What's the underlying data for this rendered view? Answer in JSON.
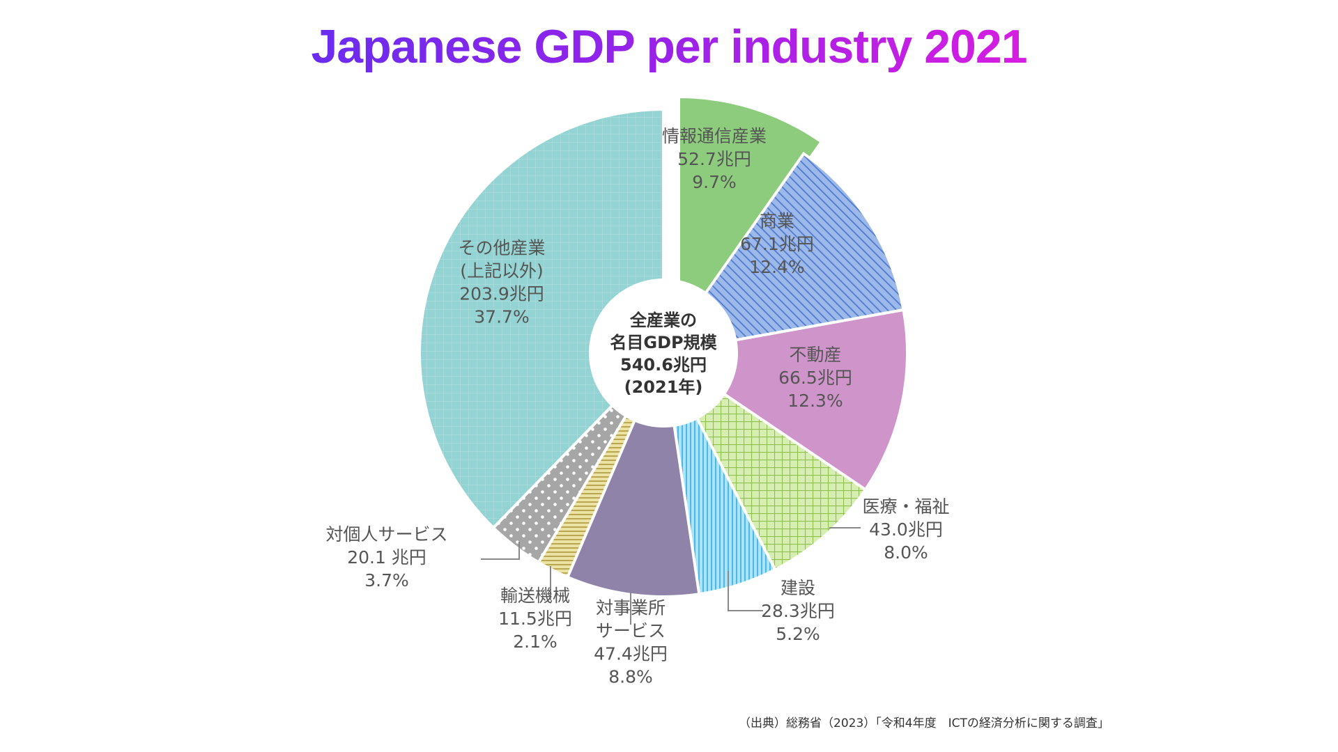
{
  "title": "Japanese GDP per industry 2021",
  "source": "（出典）総務省（2023）「令和4年度　ICTの経済分析に関する調査」",
  "chart_data": {
    "type": "pie",
    "style": "donut",
    "unit": "兆円",
    "center_label": [
      "全産業の",
      "名目GDP規模",
      "540.6兆円",
      "(2021年)"
    ],
    "total": 540.6,
    "legend": "none",
    "slices": [
      {
        "key": "info",
        "name": "情報通信産業",
        "value_text": "52.7兆円",
        "percent_text": "9.7%",
        "value": 52.7,
        "percent": 9.7,
        "color": "#8dcc7d",
        "pattern": "solid",
        "exploded": true
      },
      {
        "key": "commerce",
        "name": "商業",
        "value_text": "67.1兆円",
        "percent_text": "12.4%",
        "value": 67.1,
        "percent": 12.4,
        "color": "#8fb0e6",
        "pattern": "diagonal-stripes"
      },
      {
        "key": "realestate",
        "name": "不動産",
        "value_text": "66.5兆円",
        "percent_text": "12.3%",
        "value": 66.5,
        "percent": 12.3,
        "color": "#cf94c9",
        "pattern": "solid"
      },
      {
        "key": "medical",
        "name": "医療・福祉",
        "value_text": "43.0兆円",
        "percent_text": "8.0%",
        "value": 43.0,
        "percent": 8.0,
        "color": "#c8e59a",
        "pattern": "grid"
      },
      {
        "key": "construction",
        "name": "建設",
        "value_text": "28.3兆円",
        "percent_text": "5.2%",
        "value": 28.3,
        "percent": 5.2,
        "color": "#8fd8f4",
        "pattern": "vertical-stripes"
      },
      {
        "key": "business",
        "name": "対事業所サービス",
        "name_lines": [
          "対事業所",
          "サービス"
        ],
        "value_text": "47.4兆円",
        "percent_text": "8.8%",
        "value": 47.4,
        "percent": 8.8,
        "color": "#8f83a9",
        "pattern": "solid"
      },
      {
        "key": "transport",
        "name": "輸送機械",
        "value_text": "11.5兆円",
        "percent_text": "2.1%",
        "value": 11.5,
        "percent": 2.1,
        "color": "#dcd28a",
        "pattern": "horizontal-stripes"
      },
      {
        "key": "personal",
        "name": "対個人サービス",
        "value_text": "20.1 兆円",
        "percent_text": "3.7%",
        "value": 20.1,
        "percent": 3.7,
        "color": "#a9a9a9",
        "pattern": "dots"
      },
      {
        "key": "other",
        "name": "その他産業",
        "name_lines": [
          "その他産業",
          "(上記以外)"
        ],
        "value_text": "203.9兆円",
        "percent_text": "37.7%",
        "value": 203.9,
        "percent": 37.7,
        "color": "#93d3d3",
        "pattern": "fine-grid"
      }
    ]
  }
}
